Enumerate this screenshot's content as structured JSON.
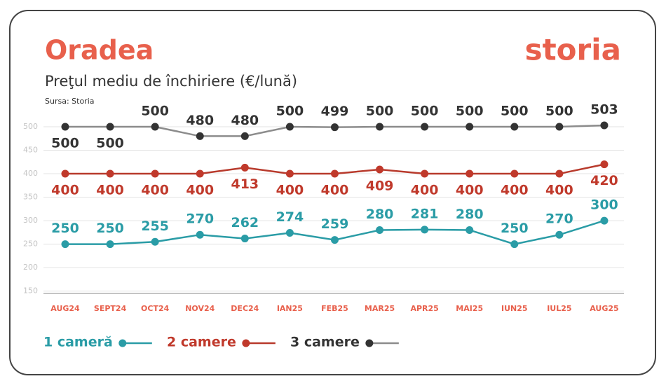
{
  "chart_data": {
    "type": "line",
    "title": "Oradea",
    "logo": "storia",
    "subtitle": "Preţul mediu de închiriere (€/lună)",
    "source": "Sursa: Storia",
    "categories": [
      "AUG24",
      "SEPT24",
      "OCT24",
      "NOV24",
      "DEC24",
      "IAN25",
      "FEB25",
      "MAR25",
      "APR25",
      "MAI25",
      "IUN25",
      "IUL25",
      "AUG25"
    ],
    "series": [
      {
        "name": "1 cameră",
        "color": "#2a9ca6",
        "marker_color": "#2a9ca6",
        "values": [
          250,
          250,
          255,
          270,
          262,
          274,
          259,
          280,
          281,
          280,
          250,
          270,
          300
        ]
      },
      {
        "name": "2 camere",
        "color": "#b83a2c",
        "marker_color": "#c0392b",
        "values": [
          400,
          400,
          400,
          400,
          413,
          400,
          400,
          409,
          400,
          400,
          400,
          400,
          420
        ]
      },
      {
        "name": "3 camere",
        "color": "#8c8c8c",
        "marker_color": "#333333",
        "values": [
          500,
          500,
          500,
          480,
          480,
          500,
          499,
          500,
          500,
          500,
          500,
          500,
          503
        ]
      }
    ],
    "ylim": [
      145,
      510
    ],
    "yticks": [
      150,
      200,
      250,
      300,
      350,
      400,
      450,
      500
    ],
    "grid": true
  }
}
